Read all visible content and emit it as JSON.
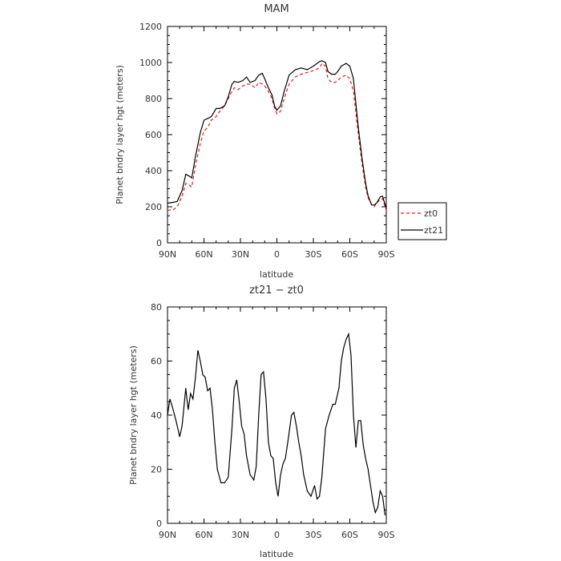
{
  "chart_data": [
    {
      "type": "line",
      "title": "MAM",
      "xlabel": "latitude",
      "ylabel": "Planet bndry layer hgt (meters)",
      "x_ticks": [
        "90N",
        "60N",
        "30N",
        "0",
        "30S",
        "60S",
        "90S"
      ],
      "y_ticks": [
        "0",
        "200",
        "400",
        "600",
        "800",
        "1000",
        "1200"
      ],
      "xlim": [
        90,
        -90
      ],
      "ylim": [
        0,
        1200
      ],
      "legend_position": "right",
      "series": [
        {
          "name": "zt0",
          "color": "#e41a1c",
          "dash": "dashed",
          "x": [
            90,
            85,
            82,
            78,
            75,
            72,
            70,
            67,
            63,
            60,
            57,
            54,
            50,
            47,
            43,
            40,
            37,
            35,
            32,
            28,
            25,
            22,
            18,
            15,
            12,
            10,
            7,
            4,
            2,
            0,
            -3,
            -6,
            -10,
            -15,
            -20,
            -25,
            -30,
            -35,
            -37,
            -40,
            -42,
            -45,
            -48,
            -50,
            -53,
            -57,
            -60,
            -63,
            -65,
            -67,
            -70,
            -73,
            -75,
            -78,
            -80,
            -82,
            -85,
            -87,
            -90
          ],
          "y": [
            180,
            185,
            200,
            260,
            330,
            320,
            310,
            430,
            550,
            620,
            640,
            680,
            700,
            730,
            760,
            800,
            840,
            860,
            850,
            870,
            880,
            880,
            860,
            890,
            880,
            870,
            840,
            800,
            750,
            715,
            730,
            800,
            880,
            920,
            935,
            945,
            955,
            970,
            995,
            980,
            910,
            890,
            890,
            900,
            920,
            930,
            910,
            840,
            720,
            600,
            440,
            310,
            250,
            210,
            200,
            220,
            240,
            245,
            180
          ]
        },
        {
          "name": "zt21",
          "color": "#000000",
          "dash": "solid",
          "x": [
            90,
            85,
            82,
            78,
            75,
            72,
            70,
            67,
            63,
            60,
            57,
            54,
            50,
            47,
            43,
            40,
            37,
            35,
            32,
            28,
            25,
            22,
            18,
            15,
            12,
            10,
            7,
            4,
            2,
            0,
            -3,
            -6,
            -10,
            -15,
            -20,
            -25,
            -30,
            -35,
            -37,
            -40,
            -42,
            -45,
            -48,
            -50,
            -53,
            -57,
            -60,
            -63,
            -65,
            -67,
            -70,
            -73,
            -75,
            -78,
            -80,
            -82,
            -85,
            -87,
            -90
          ],
          "y": [
            220,
            225,
            230,
            290,
            380,
            370,
            360,
            480,
            610,
            680,
            690,
            700,
            745,
            745,
            760,
            810,
            880,
            895,
            890,
            900,
            920,
            890,
            900,
            930,
            940,
            910,
            860,
            820,
            760,
            735,
            760,
            840,
            930,
            960,
            970,
            960,
            980,
            1005,
            1010,
            1000,
            950,
            935,
            935,
            950,
            980,
            995,
            980,
            910,
            770,
            640,
            470,
            330,
            260,
            210,
            210,
            220,
            255,
            258,
            190
          ]
        }
      ]
    },
    {
      "type": "line",
      "title": "zt21 − zt0",
      "xlabel": "latitude",
      "ylabel": "Planet bndry layer hgt (meters)",
      "x_ticks": [
        "90N",
        "60N",
        "30N",
        "0",
        "30S",
        "60S",
        "90S"
      ],
      "y_ticks": [
        "0",
        "20",
        "40",
        "60",
        "80"
      ],
      "xlim": [
        90,
        -90
      ],
      "ylim": [
        0,
        80
      ],
      "series": [
        {
          "color": "#000000",
          "dash": "solid",
          "x": [
            90,
            88,
            86,
            83,
            80,
            78,
            75,
            73,
            71,
            69,
            67,
            65,
            63,
            61,
            59,
            57,
            55,
            53,
            51,
            49,
            46,
            43,
            40,
            37,
            35,
            33,
            31,
            29,
            27,
            25,
            22,
            19,
            17,
            15,
            13,
            11,
            9,
            7,
            5,
            3,
            1,
            -1,
            -3,
            -5,
            -7,
            -9,
            -12,
            -14,
            -16,
            -18,
            -20,
            -22,
            -25,
            -28,
            -31,
            -33,
            -35,
            -37,
            -40,
            -43,
            -46,
            -48,
            -51,
            -53,
            -55,
            -57,
            -59,
            -61,
            -63,
            -65,
            -67,
            -69,
            -71,
            -73,
            -75,
            -77,
            -79,
            -81,
            -83,
            -85,
            -87,
            -89
          ],
          "y": [
            40,
            46,
            43,
            38,
            32,
            36,
            50,
            42,
            48,
            46,
            54,
            64,
            60,
            55,
            54,
            49,
            50,
            42,
            30,
            20,
            15,
            15,
            17,
            35,
            50,
            53,
            45,
            36,
            33,
            25,
            18,
            16,
            21,
            40,
            55,
            56,
            46,
            30,
            25,
            24,
            15,
            10,
            18,
            22,
            24,
            30,
            40,
            41,
            36,
            30,
            25,
            18,
            12,
            10,
            14,
            9,
            10,
            17,
            35,
            40,
            44,
            44,
            50,
            60,
            65,
            68,
            70,
            62,
            40,
            28,
            38,
            38,
            29,
            24,
            20,
            14,
            8,
            4,
            6,
            12,
            10,
            3
          ]
        }
      ]
    }
  ],
  "legend": {
    "items": [
      {
        "label": "zt0"
      },
      {
        "label": "zt21"
      }
    ]
  }
}
